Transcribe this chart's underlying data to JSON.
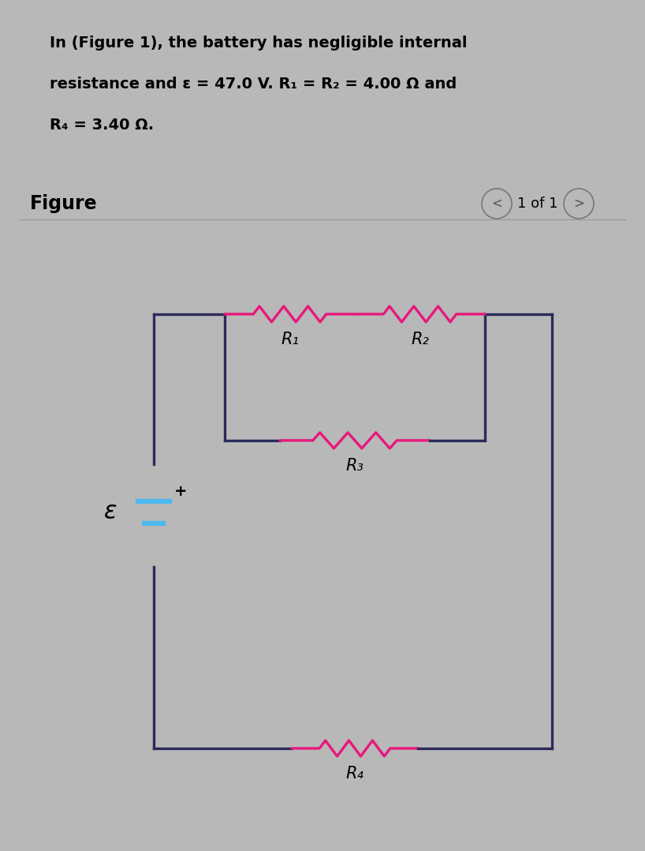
{
  "header_bg": "#a8cfe8",
  "page_bg": "#b8b8b8",
  "content_bg": "#c8c8c8",
  "header_line1": "In (Figure 1), the battery has negligible internal",
  "header_line2": "resistance and ε = 47.0 V. R₁ = R₂ = 4.00 Ω and",
  "header_line3": "R₄ = 3.40 Ω.",
  "figure_label": "Figure",
  "nav_text": "1 of 1",
  "resistor_color": "#e8187c",
  "wire_color": "#2a2a5a",
  "battery_line_color": "#4db8f0",
  "battery_symbol": "ε",
  "plus_sign": "+",
  "R1_label": "R₁",
  "R2_label": "R₂",
  "R3_label": "R₃",
  "R4_label": "R₄",
  "lw": 2.4
}
